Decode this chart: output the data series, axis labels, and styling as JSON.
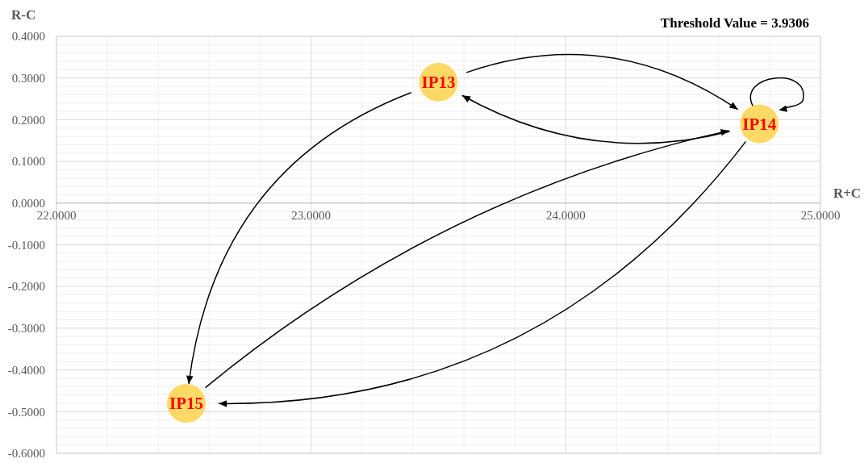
{
  "chart_data": {
    "type": "scatter",
    "title": "Threshold Value = 3.9306",
    "xlabel": "R+C",
    "ylabel": "R-C",
    "x": [
      23.5,
      24.76,
      22.51
    ],
    "series": [
      {
        "color": "#ffd966",
        "values": [
          0.29,
          0.19,
          -0.48
        ]
      }
    ],
    "marker": "circle",
    "grid": true,
    "xlim": [
      22,
      25
    ],
    "ylim": [
      -0.6,
      0.4
    ],
    "xticks": [
      {
        "value": 22,
        "label": "22.0000"
      },
      {
        "value": 23,
        "label": "23.0000"
      },
      {
        "value": 24,
        "label": "24.0000"
      },
      {
        "value": 25,
        "label": "25.0000"
      }
    ],
    "yticks": [
      {
        "value": -0.6,
        "label": "-0.6000"
      },
      {
        "value": -0.5,
        "label": "-0.5000"
      },
      {
        "value": -0.4,
        "label": "-0.4000"
      },
      {
        "value": -0.3,
        "label": "-0.3000"
      },
      {
        "value": -0.2,
        "label": "-0.2000"
      },
      {
        "value": -0.1,
        "label": "-0.1000"
      },
      {
        "value": 0,
        "label": "0.0000"
      },
      {
        "value": 0.1,
        "label": "0.1000"
      },
      {
        "value": 0.2,
        "label": "0.2000"
      },
      {
        "value": 0.3,
        "label": "0.3000"
      },
      {
        "value": 0.4,
        "label": "0.4000"
      }
    ],
    "annotations": [
      {
        "text": "IP13",
        "x": 23.5,
        "y": 0.29
      },
      {
        "text": "IP14",
        "x": 24.76,
        "y": 0.19
      },
      {
        "text": "IP15",
        "x": 22.51,
        "y": -0.48
      }
    ]
  }
}
